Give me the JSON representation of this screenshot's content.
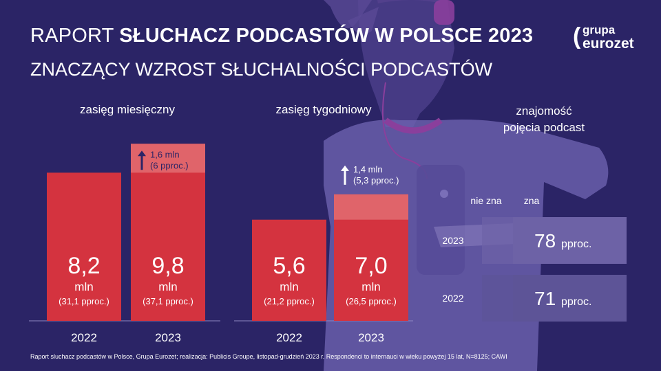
{
  "header": {
    "title_regular": "RAPORT ",
    "title_bold": "SŁUCHACZ PODCASTÓW W POLSCE 2023",
    "subtitle": "ZNACZĄCY WZROST SŁUCHALNOŚCI PODCASTÓW"
  },
  "logo": {
    "line1": "grupa",
    "line2": "eurozet",
    "paren": "("
  },
  "colors": {
    "background": "#2b2466",
    "bar": "#d4333f",
    "increase": "#e0646a",
    "panel_2023": "#6d62a6",
    "panel_2022": "#5d5497",
    "divider": "#8f87c2",
    "text": "#ffffff",
    "arrow_text": "#2b2466"
  },
  "chart_data": [
    {
      "type": "bar",
      "title": "zasięg miesięczny",
      "categories": [
        "2022",
        "2023"
      ],
      "values": [
        8.2,
        9.8
      ],
      "unit": "mln",
      "value_labels": [
        "8,2",
        "9,8"
      ],
      "percent_labels": [
        "(31,1 pproc.)",
        "(37,1 pproc.)"
      ],
      "increase": {
        "value": 1.6,
        "label": "1,6 mln",
        "label2": "(6 pproc.)"
      },
      "ylim": [
        0,
        10.8
      ]
    },
    {
      "type": "bar",
      "title": "zasięg tygodniowy",
      "categories": [
        "2022",
        "2023"
      ],
      "values": [
        5.6,
        7.0
      ],
      "unit": "mln",
      "value_labels": [
        "5,6",
        "7,0"
      ],
      "percent_labels": [
        "(21,2 pproc.)",
        "(26,5 pproc.)"
      ],
      "increase": {
        "value": 1.4,
        "label": "1,4 mln",
        "label2": "(5,3 pproc.)"
      },
      "ylim": [
        0,
        10.8
      ]
    },
    {
      "type": "table",
      "title": "znajomość pojęcia podcast",
      "title_lines": [
        "znajomość",
        "pojęcia podcast"
      ],
      "columns": [
        "nie zna",
        "zna"
      ],
      "rows": [
        {
          "year": "2023",
          "zna_value": 78,
          "zna_label": "78",
          "unit": "pproc."
        },
        {
          "year": "2022",
          "zna_value": 71,
          "zna_label": "71",
          "unit": "pproc."
        }
      ]
    }
  ],
  "footer": "Raport sluchacz podcastów w Polsce, Grupa Eurozet; realizacja: Publicis Groupe, listopad-grudzień 2023 r. Respondenci to internauci w wieku powyżej 15 lat, N=8125; CAWI"
}
